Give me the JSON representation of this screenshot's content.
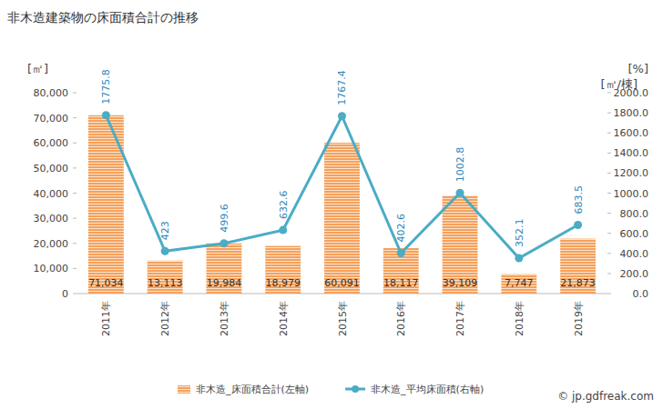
{
  "chart_data": {
    "type": "bar",
    "title": "非木造建築物の床面積合計の推移",
    "y_label": "[㎡]",
    "y2_unit_label": "[%]",
    "y2_label": "[㎡/棟]",
    "source": "© jp.gdfreak.com",
    "categories": [
      "2011年",
      "2012年",
      "2013年",
      "2014年",
      "2015年",
      "2016年",
      "2017年",
      "2018年",
      "2019年"
    ],
    "series": [
      {
        "name": "非木造_床面積合計(左軸)",
        "type": "bar",
        "color": "#f4a15d",
        "values": [
          71034,
          13113,
          19984,
          18979,
          60091,
          18117,
          39109,
          7747,
          21873
        ],
        "value_labels": [
          "71,034",
          "13,113",
          "19,984",
          "18,979",
          "60,091",
          "18,117",
          "39,109",
          "7,747",
          "21,873"
        ]
      },
      {
        "name": "非木造_平均床面積(右軸)",
        "type": "line",
        "color": "#4bacc6",
        "marker": "circle",
        "axis": "y2",
        "values": [
          1775.8,
          423,
          499.6,
          632.6,
          1767.4,
          402.6,
          1002.8,
          352.1,
          683.5
        ]
      }
    ],
    "ylim": [
      0,
      80000
    ],
    "yticks": [
      {
        "value": 0,
        "label": "0"
      },
      {
        "value": 10000,
        "label": "10,000"
      },
      {
        "value": 20000,
        "label": "20,000"
      },
      {
        "value": 30000,
        "label": "30,000"
      },
      {
        "value": 40000,
        "label": "40,000"
      },
      {
        "value": 50000,
        "label": "50,000"
      },
      {
        "value": 60000,
        "label": "60,000"
      },
      {
        "value": 70000,
        "label": "70,000"
      },
      {
        "value": 80000,
        "label": "80,000"
      }
    ],
    "y2lim": [
      0,
      2000
    ],
    "y2ticks": [
      {
        "value": 0,
        "label": "0.0"
      },
      {
        "value": 200,
        "label": "200.0"
      },
      {
        "value": 400,
        "label": "400.0"
      },
      {
        "value": 600,
        "label": "600.0"
      },
      {
        "value": 800,
        "label": "800.0"
      },
      {
        "value": 1000,
        "label": "1000.0"
      },
      {
        "value": 1200,
        "label": "1200.0"
      },
      {
        "value": 1400,
        "label": "1400.0"
      },
      {
        "value": 1600,
        "label": "1600.0"
      },
      {
        "value": 1800,
        "label": "1800.0"
      },
      {
        "value": 2000,
        "label": "2000.0"
      }
    ],
    "grid": false,
    "legend": "bottom",
    "data_labels": true
  }
}
